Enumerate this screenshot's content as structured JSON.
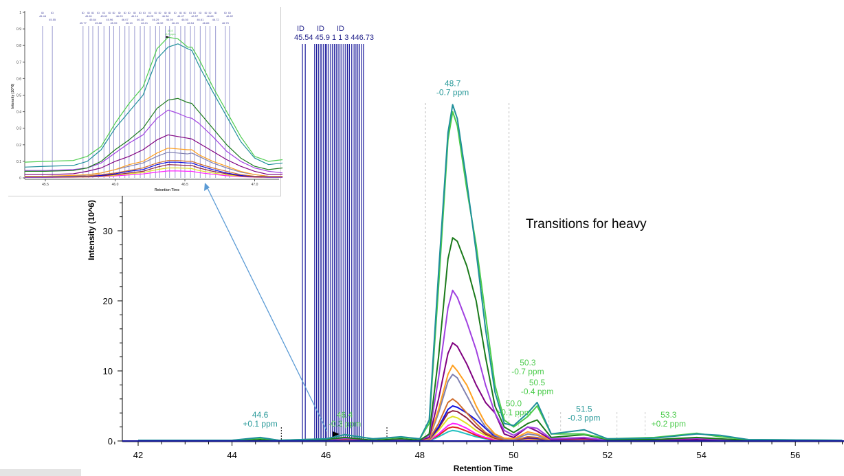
{
  "chart_data": [
    {
      "type": "line",
      "xlabel": "Retention Time",
      "ylabel": "Intensity (10^6)",
      "xlim": [
        41.6,
        57.1
      ],
      "ylim": [
        0,
        62
      ],
      "x_ticks": [
        42,
        44,
        46,
        48,
        50,
        52,
        54,
        56
      ],
      "y_ticks": [
        0,
        10,
        20,
        30
      ],
      "grid": false,
      "x": [
        42,
        44,
        44.6,
        45,
        46,
        46.4,
        47,
        47.6,
        48,
        48.2,
        48.4,
        48.6,
        48.7,
        48.8,
        49.0,
        49.2,
        49.4,
        49.6,
        49.8,
        50.0,
        50.3,
        50.5,
        50.8,
        51.5,
        52,
        53,
        53.9,
        54.4,
        55,
        57
      ],
      "series": [
        {
          "color": "#1f8f9a",
          "values": [
            0.1,
            0.1,
            0.5,
            0.1,
            0.3,
            0.9,
            0.3,
            0.6,
            0.3,
            3,
            24,
            44,
            48,
            46,
            37,
            27,
            16,
            7,
            2.5,
            2.2,
            4,
            5.5,
            1,
            1.6,
            0.3,
            0.4,
            1,
            0.8,
            0.2,
            0.1
          ]
        },
        {
          "color": "#4ccc4c",
          "values": [
            0.1,
            0.1,
            0.4,
            0.1,
            0.3,
            0.9,
            0.3,
            0.5,
            0.3,
            2.5,
            22,
            43,
            47,
            45,
            36,
            28,
            18,
            8,
            3,
            2,
            3.5,
            5,
            1,
            1,
            0.3,
            0.5,
            1.1,
            0.6,
            0.2,
            0.1
          ]
        },
        {
          "color": "#1a7a1a",
          "values": [
            0,
            0,
            0.2,
            0,
            0.2,
            0.5,
            0.1,
            0.3,
            0.1,
            1,
            12,
            26,
            29,
            28.5,
            25,
            20,
            12,
            5,
            2,
            1.2,
            2.5,
            3,
            0.5,
            0.9,
            0.2,
            0.2,
            0.5,
            0.3,
            0.1,
            0
          ]
        },
        {
          "color": "#a040e0",
          "values": [
            0,
            0,
            0.1,
            0,
            0.1,
            0.4,
            0.1,
            0.2,
            0.1,
            0.8,
            9,
            19,
            21.5,
            20.5,
            17,
            13,
            8,
            4,
            1.5,
            0.8,
            2,
            1.8,
            0.3,
            0.5,
            0.1,
            0.2,
            0.4,
            0.2,
            0,
            0
          ]
        },
        {
          "color": "#800080",
          "values": [
            0,
            0,
            0.1,
            0,
            0.1,
            0.3,
            0.1,
            0.1,
            0.1,
            0.5,
            6,
            12.5,
            14,
            13.5,
            11,
            8,
            5.5,
            4,
            1,
            0.5,
            2,
            1.4,
            0.2,
            0.3,
            0.1,
            0.1,
            0.2,
            0.1,
            0,
            0
          ]
        },
        {
          "color": "#ffa020",
          "values": [
            0,
            0,
            0,
            0,
            0.1,
            0.2,
            0,
            0.1,
            0,
            0.4,
            4.5,
            9.5,
            10.8,
            10,
            8,
            5,
            2.5,
            1,
            0.4,
            0.3,
            1.3,
            1,
            0.1,
            0.2,
            0,
            0.1,
            0.1,
            0,
            0,
            0
          ]
        },
        {
          "color": "#8080b0",
          "values": [
            0,
            0,
            0,
            0,
            0.1,
            0.2,
            0,
            0.1,
            0,
            0.3,
            4,
            8.5,
            9.5,
            9,
            6.5,
            4,
            2,
            0.8,
            0.3,
            0.2,
            1,
            0.8,
            0.1,
            0.1,
            0,
            0,
            0.1,
            0,
            0,
            0
          ]
        },
        {
          "color": "#d07030",
          "values": [
            0,
            0,
            0,
            0,
            0,
            0.1,
            0,
            0,
            0,
            0.2,
            2.5,
            5.5,
            6,
            5.5,
            4,
            2.5,
            1.2,
            0.5,
            0.2,
            0.1,
            0.6,
            0.5,
            0,
            0.1,
            0,
            0,
            0,
            0,
            0,
            0
          ]
        },
        {
          "color": "#1010e0",
          "values": [
            0,
            0,
            0,
            0,
            0,
            0.1,
            0,
            0,
            0,
            0.2,
            2,
            4.5,
            5,
            4.8,
            4,
            3,
            1.8,
            0.6,
            0.2,
            0.1,
            0.5,
            0.4,
            0,
            0.1,
            0,
            0,
            0,
            0,
            0,
            0
          ]
        },
        {
          "color": "#902040",
          "values": [
            0,
            0,
            0,
            0,
            0,
            0.1,
            0,
            0,
            0,
            0.2,
            1.8,
            4,
            4.3,
            4.2,
            3.3,
            2,
            1,
            0.4,
            0.1,
            0.1,
            0.4,
            0.3,
            0,
            0,
            0,
            0,
            0,
            0,
            0,
            0
          ]
        },
        {
          "color": "#e0e020",
          "values": [
            0,
            0,
            0,
            0,
            0,
            0.1,
            0,
            0,
            0,
            0.1,
            1.5,
            3.2,
            3.5,
            3.3,
            2.5,
            1.5,
            0.8,
            0.3,
            0.1,
            0,
            0.3,
            0.2,
            0,
            0,
            0,
            0,
            0,
            0,
            0,
            0
          ]
        },
        {
          "color": "#ff20ff",
          "values": [
            0,
            0,
            0,
            0,
            0,
            0,
            0,
            0,
            0,
            0.1,
            1,
            2.2,
            2.5,
            2.4,
            1.8,
            1,
            0.5,
            0.2,
            0.1,
            0,
            0.2,
            0.1,
            0,
            0,
            0,
            0,
            0,
            0,
            0,
            0
          ]
        },
        {
          "color": "#e02020",
          "values": [
            0,
            0,
            0,
            0,
            0,
            0,
            0,
            0,
            0,
            0.1,
            0.8,
            1.8,
            2,
            1.9,
            1.4,
            0.8,
            0.4,
            0.1,
            0,
            0,
            0.1,
            0.1,
            0,
            0,
            0,
            0,
            0,
            0,
            0,
            0
          ]
        },
        {
          "color": "#20c0c0",
          "values": [
            0,
            0,
            0,
            0,
            0,
            0,
            0,
            0,
            0,
            0,
            0.6,
            1.3,
            1.5,
            1.4,
            1,
            0.6,
            0.3,
            0.1,
            0,
            0,
            0.1,
            0,
            0,
            0,
            0,
            0,
            0,
            0,
            0,
            0
          ]
        }
      ],
      "id_markers": {
        "label": "ID",
        "times": [
          45.5,
          45.56,
          45.76,
          45.8,
          45.84,
          45.88,
          45.91,
          45.95,
          45.99,
          46.02,
          46.06,
          46.1,
          46.14,
          46.18,
          46.22,
          46.26,
          46.3,
          46.34,
          46.38,
          46.42,
          46.46,
          46.5,
          46.55,
          46.6,
          46.64,
          46.68,
          46.72,
          46.76,
          46.8
        ]
      },
      "id_header_labels": [
        "ID",
        "45.54",
        "ID",
        "45.9",
        "1",
        "1",
        "3",
        "446.73",
        "ID"
      ],
      "annotations": [
        {
          "x": 44.6,
          "y": 1.2,
          "time": "44.6",
          "ppm": "+0.1 ppm",
          "color": "#2a9a9a"
        },
        {
          "x": 46.4,
          "y": 1.2,
          "time": "46.4",
          "ppm": "-0.3 ppm",
          "color": "#4ccc4c"
        },
        {
          "x": 48.7,
          "y": 48.5,
          "time": "48.7",
          "ppm": "-0.7 ppm",
          "color": "#2a9a9a"
        },
        {
          "x": 50.3,
          "y": 8,
          "time": "50.3",
          "ppm": "-0.7 ppm",
          "color": "#4ccc4c"
        },
        {
          "x": 50.5,
          "y": 5.8,
          "time": "50.5",
          "ppm": "-0.4 ppm",
          "color": "#4ccc4c"
        },
        {
          "x": 50.0,
          "y": 2.8,
          "time": "50.0",
          "ppm": "+0.1 ppm",
          "color": "#4ccc4c"
        },
        {
          "x": 51.5,
          "y": 2,
          "time": "51.5",
          "ppm": "-0.3 ppm",
          "color": "#2a9a9a"
        },
        {
          "x": 53.3,
          "y": 1.2,
          "time": "53.3",
          "ppm": "+0.2 ppm",
          "color": "#4ccc4c"
        }
      ],
      "peak_bounds": [
        48.12,
        49.9
      ]
    },
    {
      "type": "line",
      "xlabel": "Retention Time",
      "ylabel": "Intensity (10^6)",
      "xlim": [
        45.35,
        47.2
      ],
      "ylim": [
        0,
        1
      ],
      "x_ticks": [
        "45.5",
        "46.0",
        "46.5",
        "47.0"
      ],
      "y_ticks": [
        "0",
        "0.1",
        "0.2",
        "0.3",
        "0.4",
        "0.5",
        "0.6",
        "0.7",
        "0.8",
        "0.9",
        "1"
      ],
      "x": [
        45.35,
        45.5,
        45.7,
        45.8,
        45.9,
        46.0,
        46.1,
        46.2,
        46.3,
        46.38,
        46.45,
        46.52,
        46.55,
        46.6,
        46.7,
        46.8,
        46.9,
        47.0,
        47.1,
        47.2
      ],
      "series": [
        {
          "color": "#4ccc4c",
          "values": [
            0.095,
            0.1,
            0.105,
            0.13,
            0.19,
            0.33,
            0.45,
            0.55,
            0.78,
            0.85,
            0.84,
            0.79,
            0.79,
            0.72,
            0.55,
            0.4,
            0.25,
            0.13,
            0.1,
            0.11
          ]
        },
        {
          "color": "#1f8f9a",
          "values": [
            0.065,
            0.07,
            0.075,
            0.1,
            0.17,
            0.3,
            0.4,
            0.5,
            0.72,
            0.79,
            0.81,
            0.78,
            0.77,
            0.68,
            0.52,
            0.37,
            0.22,
            0.12,
            0.08,
            0.09
          ]
        },
        {
          "color": "#1a7a1a",
          "values": [
            0.04,
            0.04,
            0.045,
            0.06,
            0.1,
            0.17,
            0.23,
            0.3,
            0.42,
            0.47,
            0.48,
            0.455,
            0.45,
            0.4,
            0.3,
            0.2,
            0.12,
            0.07,
            0.05,
            0.06
          ]
        },
        {
          "color": "#a040e0",
          "values": [
            0.045,
            0.045,
            0.05,
            0.06,
            0.09,
            0.15,
            0.21,
            0.26,
            0.36,
            0.41,
            0.39,
            0.365,
            0.36,
            0.33,
            0.25,
            0.16,
            0.1,
            0.06,
            0.04,
            0.03
          ]
        },
        {
          "color": "#800080",
          "values": [
            0.02,
            0.02,
            0.025,
            0.04,
            0.06,
            0.1,
            0.13,
            0.17,
            0.23,
            0.26,
            0.25,
            0.24,
            0.235,
            0.21,
            0.16,
            0.11,
            0.07,
            0.04,
            0.02,
            0.02
          ]
        },
        {
          "color": "#ffa020",
          "values": [
            0.01,
            0.01,
            0.015,
            0.02,
            0.03,
            0.05,
            0.08,
            0.1,
            0.15,
            0.18,
            0.175,
            0.17,
            0.17,
            0.14,
            0.1,
            0.07,
            0.04,
            0.02,
            0.01,
            0.01
          ]
        },
        {
          "color": "#8080b0",
          "values": [
            0.01,
            0.01,
            0.012,
            0.018,
            0.03,
            0.05,
            0.07,
            0.09,
            0.13,
            0.155,
            0.15,
            0.145,
            0.15,
            0.13,
            0.09,
            0.06,
            0.035,
            0.02,
            0.01,
            0.01
          ]
        },
        {
          "color": "#d07030",
          "values": [
            0.01,
            0.01,
            0.01,
            0.012,
            0.02,
            0.03,
            0.045,
            0.06,
            0.09,
            0.105,
            0.105,
            0.1,
            0.1,
            0.085,
            0.06,
            0.04,
            0.02,
            0.01,
            0.01,
            0.01
          ]
        },
        {
          "color": "#1010e0",
          "values": [
            0.005,
            0.005,
            0.008,
            0.01,
            0.015,
            0.025,
            0.04,
            0.05,
            0.08,
            0.095,
            0.095,
            0.09,
            0.09,
            0.075,
            0.05,
            0.03,
            0.015,
            0.008,
            0.005,
            0.005
          ]
        },
        {
          "color": "#902040",
          "values": [
            0.005,
            0.005,
            0.006,
            0.008,
            0.012,
            0.02,
            0.03,
            0.04,
            0.065,
            0.08,
            0.078,
            0.075,
            0.075,
            0.06,
            0.04,
            0.025,
            0.012,
            0.006,
            0.005,
            0.005
          ]
        },
        {
          "color": "#e0e020",
          "values": [
            0.004,
            0.004,
            0.005,
            0.006,
            0.01,
            0.016,
            0.025,
            0.032,
            0.05,
            0.06,
            0.06,
            0.058,
            0.056,
            0.045,
            0.03,
            0.018,
            0.01,
            0.005,
            0.004,
            0.004
          ]
        },
        {
          "color": "#ff20ff",
          "values": [
            0.003,
            0.003,
            0.004,
            0.005,
            0.008,
            0.012,
            0.018,
            0.024,
            0.035,
            0.042,
            0.042,
            0.04,
            0.04,
            0.032,
            0.022,
            0.013,
            0.007,
            0.004,
            0.003,
            0.003
          ]
        }
      ],
      "id_markers": {
        "label": "ID",
        "times": [
          45.48,
          45.55,
          45.77,
          45.81,
          45.84,
          45.88,
          45.92,
          45.96,
          45.99,
          46.03,
          46.07,
          46.1,
          46.14,
          46.18,
          46.21,
          46.25,
          46.29,
          46.32,
          46.36,
          46.39,
          46.43,
          46.47,
          46.5,
          46.54,
          46.57,
          46.61,
          46.65,
          46.68,
          46.72,
          46.79,
          46.82
        ]
      },
      "annotation": {
        "x": 46.38,
        "y": 0.85,
        "time": "46.4",
        "ppm": "-0.3 ppm",
        "color": "#4ccc4c"
      }
    }
  ],
  "note": "Transitions for heavy"
}
